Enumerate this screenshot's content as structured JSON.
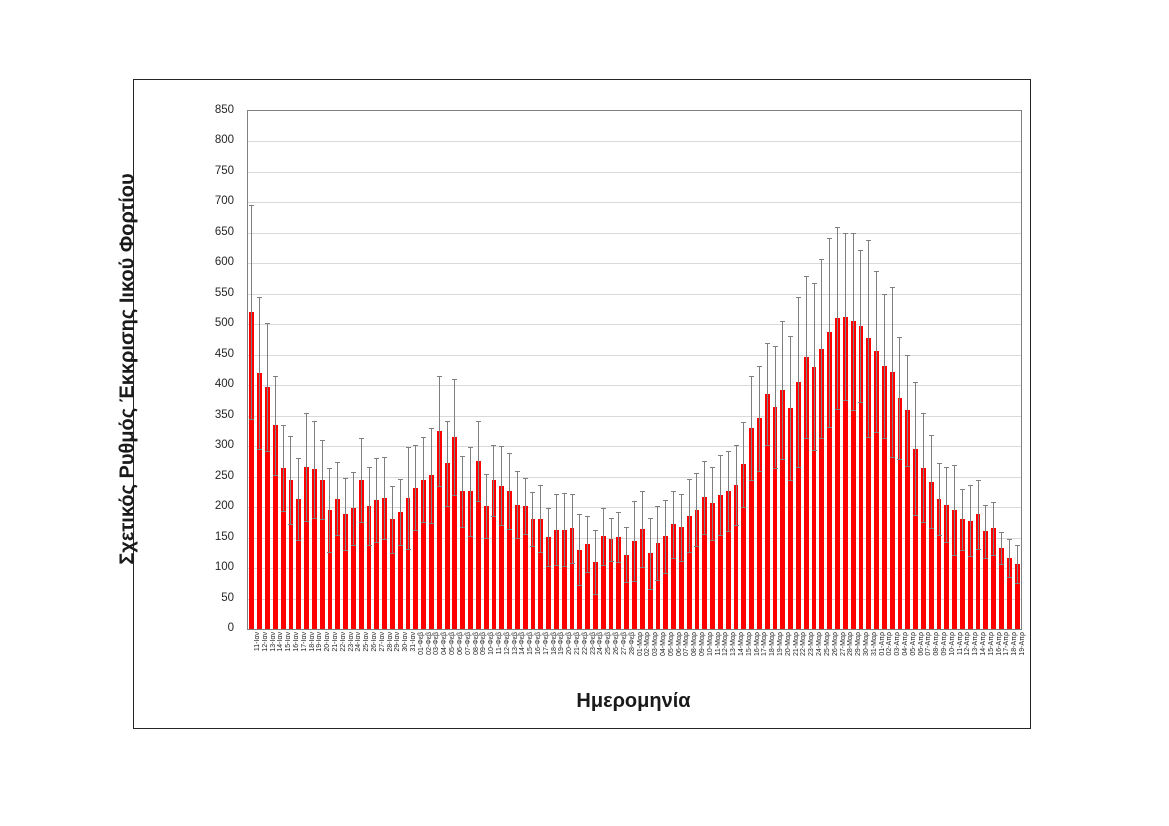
{
  "figure": {
    "background": "#ffffff",
    "frame_border_color": "#262626",
    "plot_border_color": "#808080",
    "gridline_color": "#d9d9d9",
    "text_color": "#262626"
  },
  "chart_data": {
    "type": "bar",
    "title": "",
    "xlabel": "Ημερομηνία",
    "ylabel": "Σχετικός Ρυθμός Έκκρισης Ιικού Φορτίου",
    "ylim": [
      0,
      850
    ],
    "ytick_step": 50,
    "grid": true,
    "legend": "none",
    "bar_color": "#ff0000",
    "error_bar_color": "#7f7f7f",
    "error_bars": "symmetric, caps at both ends",
    "categories": [
      "11-Ιαν",
      "12-Ιαν",
      "13-Ιαν",
      "14-Ιαν",
      "15-Ιαν",
      "16-Ιαν",
      "17-Ιαν",
      "18-Ιαν",
      "19-Ιαν",
      "20-Ιαν",
      "21-Ιαν",
      "22-Ιαν",
      "23-Ιαν",
      "24-Ιαν",
      "25-Ιαν",
      "26-Ιαν",
      "27-Ιαν",
      "28-Ιαν",
      "29-Ιαν",
      "30-Ιαν",
      "31-Ιαν",
      "01-Φεβ",
      "02-Φεβ",
      "03-Φεβ",
      "04-Φεβ",
      "05-Φεβ",
      "06-Φεβ",
      "07-Φεβ",
      "08-Φεβ",
      "09-Φεβ",
      "10-Φεβ",
      "11-Φεβ",
      "12-Φεβ",
      "13-Φεβ",
      "14-Φεβ",
      "15-Φεβ",
      "16-Φεβ",
      "17-Φεβ",
      "18-Φεβ",
      "19-Φεβ",
      "20-Φεβ",
      "21-Φεβ",
      "22-Φεβ",
      "23-Φεβ",
      "24-Φεβ",
      "25-Φεβ",
      "26-Φεβ",
      "27-Φεβ",
      "28-Φεβ",
      "01-Μαρ",
      "02-Μαρ",
      "03-Μαρ",
      "04-Μαρ",
      "05-Μαρ",
      "06-Μαρ",
      "07-Μαρ",
      "08-Μαρ",
      "09-Μαρ",
      "10-Μαρ",
      "11-Μαρ",
      "12-Μαρ",
      "13-Μαρ",
      "14-Μαρ",
      "15-Μαρ",
      "16-Μαρ",
      "17-Μαρ",
      "18-Μαρ",
      "19-Μαρ",
      "20-Μαρ",
      "21-Μαρ",
      "22-Μαρ",
      "23-Μαρ",
      "24-Μαρ",
      "25-Μαρ",
      "26-Μαρ",
      "27-Μαρ",
      "28-Μαρ",
      "29-Μαρ",
      "30-Μαρ",
      "31-Μαρ",
      "01-Απρ",
      "02-Απρ",
      "03-Απρ",
      "04-Απρ",
      "05-Απρ",
      "06-Απρ",
      "07-Απρ",
      "08-Απρ",
      "09-Απρ",
      "10-Απρ",
      "11-Απρ",
      "12-Απρ",
      "13-Απρ",
      "14-Απρ",
      "15-Απρ",
      "16-Απρ",
      "17-Απρ",
      "18-Απρ",
      "19-Απρ"
    ],
    "values": [
      520,
      420,
      397,
      334,
      264,
      245,
      213,
      266,
      262,
      245,
      195,
      214,
      189,
      198,
      245,
      202,
      211,
      215,
      180,
      192,
      215,
      232,
      245,
      252,
      325,
      272,
      315,
      226,
      226,
      276,
      202,
      244,
      235,
      226,
      204,
      202,
      181,
      181,
      151,
      163,
      163,
      165,
      130,
      139,
      110,
      152,
      147,
      151,
      122,
      144,
      164,
      124,
      141,
      152,
      172,
      167,
      186,
      196,
      216,
      206,
      220,
      226,
      236,
      270,
      330,
      346,
      386,
      365,
      392,
      363,
      405,
      447,
      430,
      460,
      487,
      510,
      512,
      505,
      497,
      477,
      456,
      431,
      422,
      379,
      359,
      296,
      265,
      242,
      214,
      204,
      195,
      180,
      178,
      188,
      160,
      165,
      133,
      117,
      107
    ],
    "error_top": [
      695,
      545,
      502,
      415,
      334,
      317,
      280,
      354,
      342,
      310,
      264,
      274,
      248,
      258,
      314,
      266,
      280,
      282,
      235,
      246,
      298,
      302,
      315,
      330,
      415,
      342,
      410,
      284,
      299,
      342,
      254,
      302,
      300,
      288,
      259,
      248,
      225,
      236,
      199,
      221,
      223,
      221,
      188,
      185,
      163,
      199,
      182,
      192,
      167,
      210,
      226,
      182,
      202,
      212,
      227,
      222,
      246,
      256,
      276,
      266,
      286,
      292,
      302,
      340,
      415,
      432,
      470,
      465,
      505,
      481,
      544,
      580,
      567,
      607,
      642,
      659,
      649,
      650,
      622,
      639,
      588,
      549,
      561,
      479,
      450,
      405,
      354,
      318,
      273,
      266,
      269,
      230,
      237,
      244,
      203,
      208,
      159,
      148,
      138
    ]
  }
}
